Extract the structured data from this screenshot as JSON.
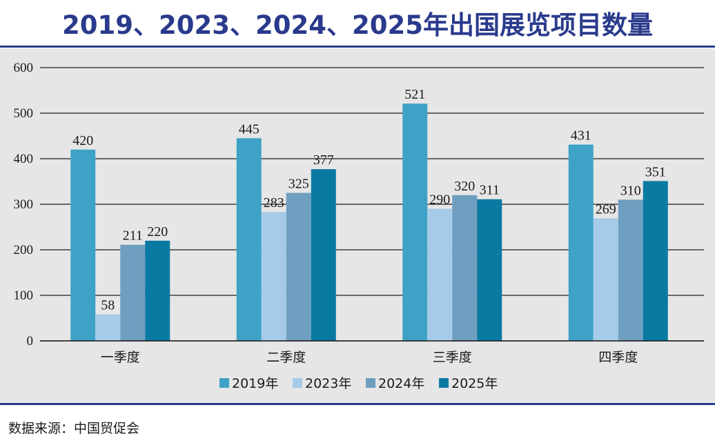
{
  "title": "2019、2023、2024、2025年出国展览项目数量",
  "source": "数据来源：中国贸促会",
  "chart_data": {
    "type": "bar",
    "title": "2019、2023、2024、2025年出国展览项目数量",
    "categories": [
      "一季度",
      "二季度",
      "三季度",
      "四季度"
    ],
    "series": [
      {
        "name": "2019年",
        "color": "#3ea2c6",
        "values": [
          420,
          445,
          521,
          431
        ]
      },
      {
        "name": "2023年",
        "color": "#a6cbe8",
        "values": [
          58,
          283,
          290,
          269
        ]
      },
      {
        "name": "2024年",
        "color": "#6f9fc0",
        "values": [
          211,
          325,
          320,
          310
        ]
      },
      {
        "name": "2025年",
        "color": "#0a7aa2",
        "values": [
          220,
          377,
          311,
          351
        ]
      }
    ],
    "yticks": [
      "0",
      "100",
      "200",
      "300",
      "400",
      "500",
      "600"
    ],
    "ylim": [
      0,
      600
    ],
    "xlabel": "",
    "ylabel": "",
    "grid": true,
    "legend": "bottom"
  }
}
